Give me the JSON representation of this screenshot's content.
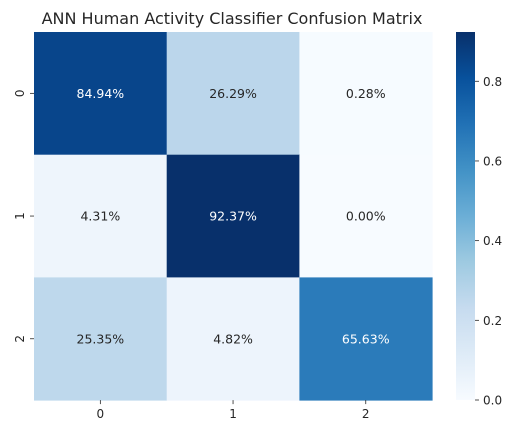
{
  "chart_data": {
    "type": "heatmap",
    "title": "ANN Human Activity Classifier Confusion Matrix",
    "x_ticks": [
      "0",
      "1",
      "2"
    ],
    "y_ticks": [
      "0",
      "1",
      "2"
    ],
    "values": [
      [
        0.8494,
        0.2629,
        0.0028
      ],
      [
        0.0431,
        0.9237,
        0.0
      ],
      [
        0.2535,
        0.0482,
        0.6563
      ]
    ],
    "annotations": [
      [
        "84.94%",
        "26.29%",
        "0.28%"
      ],
      [
        "4.31%",
        "92.37%",
        "0.00%"
      ],
      [
        "25.35%",
        "4.82%",
        "65.63%"
      ]
    ],
    "colormap": "Blues",
    "colorbar": {
      "min": 0.0,
      "max": 0.9237,
      "ticks": [
        "0.0",
        "0.2",
        "0.4",
        "0.6",
        "0.8"
      ],
      "tick_values": [
        0.0,
        0.2,
        0.4,
        0.6,
        0.8
      ]
    }
  }
}
